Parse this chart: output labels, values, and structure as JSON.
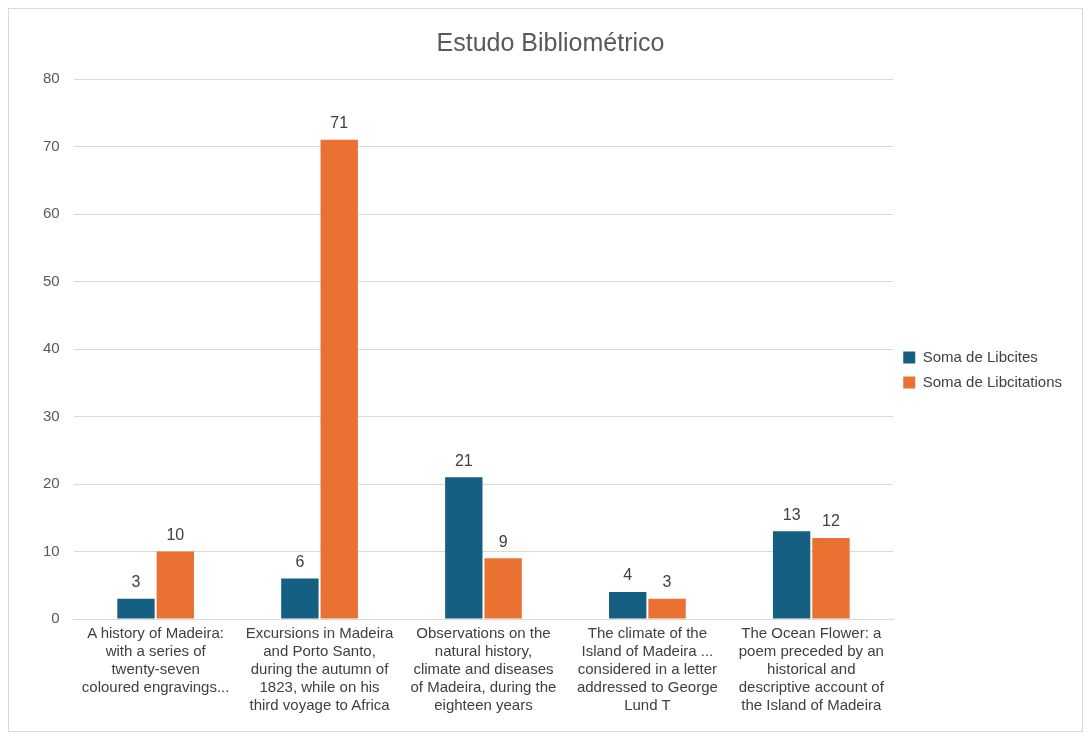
{
  "chart_data": {
    "type": "bar",
    "title": "Estudo Bibliométrico",
    "categories": [
      "A history of Madeira: with a series of twenty-seven coloured engravings...",
      "Excursions in Madeira and Porto Santo, during the autumn of 1823, while on his third voyage to Africa",
      "Observations on the natural history, climate and diseases of Madeira, during the eighteen years",
      "The climate of the Island of Madeira ... considered in a letter addressed to George Lund T",
      "The Ocean Flower: a poem preceded by an historical and descriptive account of the Island of Madeira"
    ],
    "series": [
      {
        "name": "Soma de Libcites",
        "color": "#156082",
        "values": [
          3,
          6,
          21,
          4,
          13
        ]
      },
      {
        "name": "Soma de Libcitations",
        "color": "#e97132",
        "values": [
          10,
          71,
          9,
          3,
          12
        ]
      }
    ],
    "ylim": [
      0,
      80
    ],
    "yticks": [
      0,
      10,
      20,
      30,
      40,
      50,
      60,
      70,
      80
    ],
    "grid": "y",
    "legend": "right",
    "data_labels": true
  }
}
